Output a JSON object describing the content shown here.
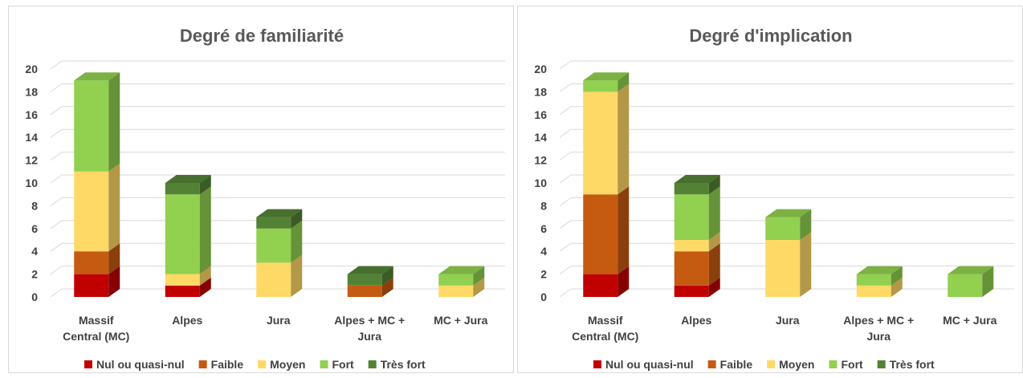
{
  "chart_data": [
    {
      "type": "bar",
      "stacked": true,
      "three_d": true,
      "title": "Degré de familiarité",
      "categories": [
        "Massif Central (MC)",
        "Alpes",
        "Jura",
        "Alpes + MC + Jura",
        "MC + Jura"
      ],
      "category_lines": [
        [
          "Massif",
          "Central (MC)"
        ],
        [
          "Alpes"
        ],
        [
          "Jura"
        ],
        [
          "Alpes + MC +",
          "Jura"
        ],
        [
          "MC + Jura"
        ]
      ],
      "series": [
        {
          "name": "Nul ou quasi-nul",
          "color": "#c00000",
          "values": [
            2,
            1,
            0,
            0,
            0
          ]
        },
        {
          "name": "Faible",
          "color": "#c55a11",
          "values": [
            2,
            0,
            0,
            1,
            0
          ]
        },
        {
          "name": "Moyen",
          "color": "#ffd966",
          "values": [
            7,
            1,
            3,
            0,
            1
          ]
        },
        {
          "name": "Fort",
          "color": "#92d050",
          "values": [
            8,
            7,
            3,
            0,
            1
          ]
        },
        {
          "name": "Très fort",
          "color": "#548235",
          "values": [
            0,
            1,
            1,
            1,
            0
          ]
        }
      ],
      "yticks": [
        "0",
        "2",
        "4",
        "6",
        "8",
        "10",
        "12",
        "14",
        "16",
        "18",
        "20"
      ],
      "ylim": [
        0,
        20
      ],
      "grid": true,
      "legend": "bottom"
    },
    {
      "type": "bar",
      "stacked": true,
      "three_d": true,
      "title": "Degré d'implication",
      "categories": [
        "Massif Central (MC)",
        "Alpes",
        "Jura",
        "Alpes + MC + Jura",
        "MC + Jura"
      ],
      "category_lines": [
        [
          "Massif",
          "Central (MC)"
        ],
        [
          "Alpes"
        ],
        [
          "Jura"
        ],
        [
          "Alpes + MC +",
          "Jura"
        ],
        [
          "MC + Jura"
        ]
      ],
      "series": [
        {
          "name": "Nul ou quasi-nul",
          "color": "#c00000",
          "values": [
            2,
            1,
            0,
            0,
            0
          ]
        },
        {
          "name": "Faible",
          "color": "#c55a11",
          "values": [
            7,
            3,
            0,
            0,
            0
          ]
        },
        {
          "name": "Moyen",
          "color": "#ffd966",
          "values": [
            9,
            1,
            5,
            1,
            0
          ]
        },
        {
          "name": "Fort",
          "color": "#92d050",
          "values": [
            1,
            4,
            2,
            1,
            2
          ]
        },
        {
          "name": "Très fort",
          "color": "#548235",
          "values": [
            0,
            1,
            0,
            0,
            0
          ]
        }
      ],
      "yticks": [
        "0",
        "2",
        "4",
        "6",
        "8",
        "10",
        "12",
        "14",
        "16",
        "18",
        "20"
      ],
      "ylim": [
        0,
        20
      ],
      "grid": true,
      "legend": "bottom"
    }
  ]
}
